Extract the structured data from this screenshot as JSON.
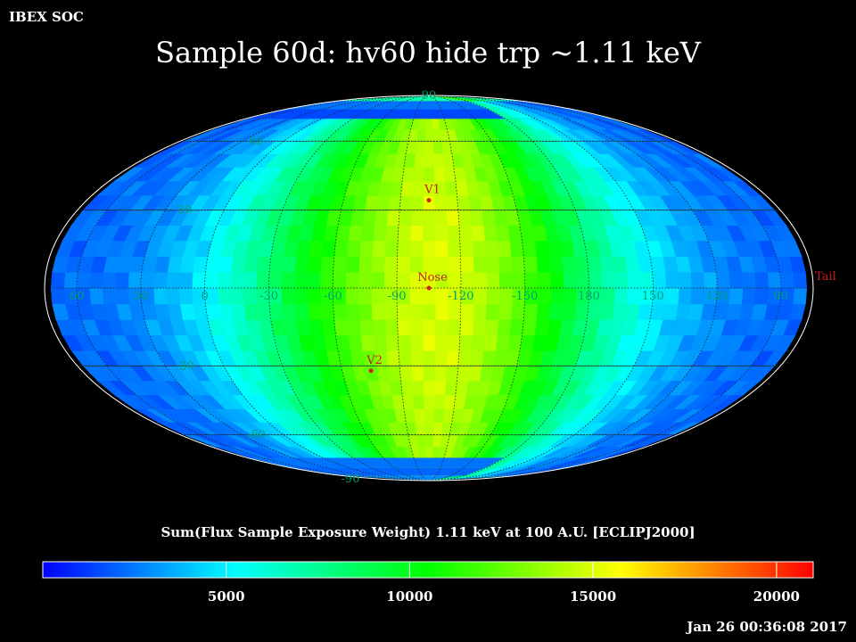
{
  "header": {
    "org": "IBEX SOC",
    "title": "Sample 60d: hv60 hide trp ~1.11 keV",
    "timestamp": "Jan 26 00:36:08 2017"
  },
  "chart_data": {
    "type": "heatmap",
    "projection": "mollweide",
    "title": "Sample 60d: hv60 hide trp ~1.11 keV",
    "colorbar_label": "Sum(Flux Sample Exposure Weight)  1.11 keV at 100 A.U. [ECLIPJ2000]",
    "colorbar_ticks": [
      "5000",
      "10000",
      "15000",
      "20000"
    ],
    "colorbar_tick_values": [
      5000,
      10000,
      15000,
      20000
    ],
    "colorbar_range": [
      0,
      21000
    ],
    "colormap": [
      "#0000ff",
      "#00ffff",
      "#00ff00",
      "#ffff00",
      "#ff0000"
    ],
    "longitude_labels": [
      "60",
      "30",
      "0",
      "-30",
      "-60",
      "-90",
      "-120",
      "-150",
      "180",
      "150",
      "120",
      "90"
    ],
    "longitude_values": [
      60,
      30,
      0,
      -30,
      -60,
      -90,
      -120,
      -150,
      180,
      150,
      120,
      90
    ],
    "latitude_labels_upper": [
      "90",
      "60",
      "30"
    ],
    "latitude_labels_lower": [
      "-30",
      "-60",
      "-90"
    ],
    "markers": [
      {
        "label": "Nose",
        "lon": -105,
        "lat": 0
      },
      {
        "label": "V1",
        "lon": -105,
        "lat": 34
      },
      {
        "label": "V2",
        "lon": -75,
        "lat": -32
      },
      {
        "label": "Tail",
        "lon": 75,
        "lat": 0
      }
    ],
    "flux_model": {
      "center_lon": -105,
      "peak": 13500,
      "floor": 2200,
      "ribbon_peak_lon": -115
    },
    "grid": true
  }
}
